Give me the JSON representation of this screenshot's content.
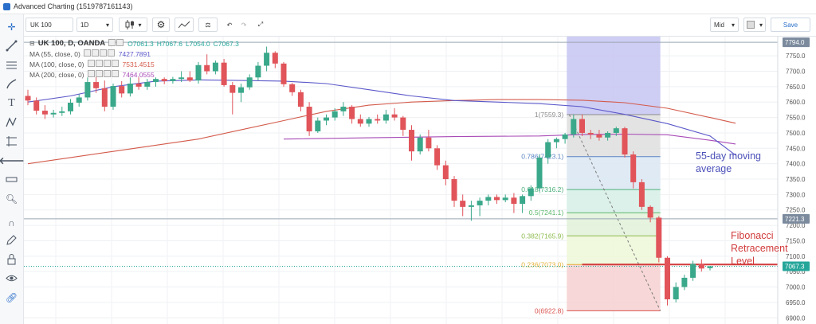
{
  "window": {
    "title": "Advanced Charting (1519787161143)"
  },
  "toolbar": {
    "symbol": "UK 100",
    "interval": "1D",
    "layout": "Mid",
    "save_label": "Save"
  },
  "legend": {
    "symbol_line": "UK 100, D, OANDA",
    "open": "O7061.3",
    "high": "H7067.6",
    "low": "L7054.0",
    "close": "C7067.3",
    "ma55": {
      "label": "MA (55, close, 0)",
      "value": "7427.7891",
      "color": "#5b58c9"
    },
    "ma100": {
      "label": "MA (100, close, 0)",
      "value": "7531.4515",
      "color": "#d35a4a"
    },
    "ma200": {
      "label": "MA (200, close, 0)",
      "value": "7464.0555",
      "color": "#a84bb7"
    }
  },
  "annotations": {
    "ma55_note": [
      "55-day moving",
      "average"
    ],
    "fib_note": [
      "Fibonacci",
      "Retracement",
      "Level"
    ]
  },
  "chart_data": {
    "type": "candlestick",
    "ylim": [
      6900,
      7800
    ],
    "y_ticks": [
      "7750.0",
      "7700.0",
      "7650.0",
      "7600.0",
      "7550.0",
      "7500.0",
      "7450.0",
      "7400.0",
      "7350.0",
      "7300.0",
      "7250.0",
      "7200.0",
      "7150.0",
      "7100.0",
      "7050.0",
      "7000.0",
      "6950.0",
      "6900.0"
    ],
    "y_tick_values": [
      7750,
      7700,
      7650,
      7600,
      7550,
      7500,
      7450,
      7400,
      7350,
      7300,
      7250,
      7200,
      7150,
      7100,
      7050,
      7000,
      6950,
      6900
    ],
    "price_labels": [
      {
        "text": "7794.0",
        "value": 7794
      },
      {
        "text": "7221.3",
        "value": 7221.3
      },
      {
        "text": "7067.3",
        "value": 7067.3
      }
    ],
    "fib_levels": [
      {
        "label": "1(7559.3)",
        "value": 7559.3
      },
      {
        "label": "0.786(7423.1)",
        "value": 7423.1
      },
      {
        "label": "0.618(7316.2)",
        "value": 7316.2
      },
      {
        "label": "0.5(7241.1)",
        "value": 7241.1
      },
      {
        "label": "0.382(7165.9)",
        "value": 7165.9
      },
      {
        "label": "0.236(7073.0)",
        "value": 7073.0
      },
      {
        "label": "0(6922.8)",
        "value": 6922.8
      }
    ],
    "candles": [
      [
        7620,
        7640,
        7590,
        7605
      ],
      [
        7605,
        7615,
        7560,
        7572
      ],
      [
        7572,
        7590,
        7545,
        7560
      ],
      [
        7560,
        7575,
        7550,
        7565
      ],
      [
        7565,
        7585,
        7555,
        7570
      ],
      [
        7570,
        7610,
        7560,
        7598
      ],
      [
        7598,
        7625,
        7585,
        7615
      ],
      [
        7615,
        7680,
        7605,
        7665
      ],
      [
        7665,
        7690,
        7630,
        7645
      ],
      [
        7645,
        7670,
        7570,
        7585
      ],
      [
        7585,
        7660,
        7575,
        7652
      ],
      [
        7652,
        7668,
        7615,
        7628
      ],
      [
        7628,
        7680,
        7618,
        7660
      ],
      [
        7660,
        7680,
        7640,
        7650
      ],
      [
        7650,
        7675,
        7640,
        7665
      ],
      [
        7665,
        7680,
        7650,
        7675
      ],
      [
        7675,
        7680,
        7658,
        7668
      ],
      [
        7668,
        7682,
        7660,
        7675
      ],
      [
        7675,
        7700,
        7665,
        7680
      ],
      [
        7680,
        7700,
        7665,
        7670
      ],
      [
        7670,
        7730,
        7660,
        7720
      ],
      [
        7720,
        7755,
        7690,
        7700
      ],
      [
        7700,
        7735,
        7690,
        7728
      ],
      [
        7728,
        7740,
        7650,
        7655
      ],
      [
        7655,
        7665,
        7560,
        7630
      ],
      [
        7630,
        7660,
        7600,
        7648
      ],
      [
        7648,
        7690,
        7640,
        7680
      ],
      [
        7680,
        7730,
        7670,
        7718
      ],
      [
        7718,
        7780,
        7700,
        7760
      ],
      [
        7760,
        7765,
        7710,
        7725
      ],
      [
        7725,
        7730,
        7650,
        7658
      ],
      [
        7658,
        7662,
        7620,
        7632
      ],
      [
        7632,
        7640,
        7570,
        7585
      ],
      [
        7585,
        7600,
        7490,
        7505
      ],
      [
        7505,
        7550,
        7500,
        7540
      ],
      [
        7540,
        7560,
        7525,
        7550
      ],
      [
        7550,
        7580,
        7540,
        7570
      ],
      [
        7570,
        7600,
        7555,
        7585
      ],
      [
        7585,
        7590,
        7530,
        7545
      ],
      [
        7545,
        7560,
        7520,
        7530
      ],
      [
        7530,
        7552,
        7520,
        7545
      ],
      [
        7545,
        7560,
        7530,
        7540
      ],
      [
        7540,
        7575,
        7530,
        7560
      ],
      [
        7560,
        7580,
        7540,
        7550
      ],
      [
        7550,
        7555,
        7490,
        7510
      ],
      [
        7510,
        7525,
        7410,
        7440
      ],
      [
        7440,
        7495,
        7430,
        7485
      ],
      [
        7485,
        7510,
        7440,
        7450
      ],
      [
        7450,
        7460,
        7380,
        7395
      ],
      [
        7395,
        7410,
        7330,
        7350
      ],
      [
        7350,
        7360,
        7260,
        7280
      ],
      [
        7280,
        7300,
        7230,
        7260
      ],
      [
        7260,
        7280,
        7215,
        7265
      ],
      [
        7265,
        7290,
        7230,
        7280
      ],
      [
        7280,
        7300,
        7265,
        7292
      ],
      [
        7292,
        7300,
        7270,
        7282
      ],
      [
        7282,
        7300,
        7275,
        7290
      ],
      [
        7290,
        7305,
        7240,
        7270
      ],
      [
        7270,
        7300,
        7240,
        7295
      ],
      [
        7295,
        7330,
        7280,
        7320
      ],
      [
        7320,
        7430,
        7310,
        7420
      ],
      [
        7420,
        7480,
        7400,
        7470
      ],
      [
        7470,
        7485,
        7450,
        7480
      ],
      [
        7480,
        7500,
        7465,
        7495
      ],
      [
        7495,
        7560,
        7485,
        7545
      ],
      [
        7545,
        7560,
        7490,
        7500
      ],
      [
        7500,
        7510,
        7480,
        7495
      ],
      [
        7495,
        7510,
        7475,
        7485
      ],
      [
        7485,
        7505,
        7475,
        7500
      ],
      [
        7500,
        7520,
        7490,
        7515
      ],
      [
        7515,
        7520,
        7420,
        7430
      ],
      [
        7430,
        7440,
        7320,
        7340
      ],
      [
        7340,
        7350,
        7250,
        7260
      ],
      [
        7260,
        7265,
        7210,
        7225
      ],
      [
        7225,
        7230,
        7080,
        7095
      ],
      [
        7095,
        7100,
        6940,
        6960
      ],
      [
        6960,
        7015,
        6950,
        7000
      ],
      [
        7000,
        7040,
        6990,
        7030
      ],
      [
        7030,
        7085,
        7020,
        7075
      ],
      [
        7075,
        7090,
        7050,
        7060
      ],
      [
        7061.3,
        7067.6,
        7054,
        7067.3
      ]
    ],
    "ma55": [
      [
        0,
        7600
      ],
      [
        5,
        7620
      ],
      [
        10,
        7650
      ],
      [
        15,
        7668
      ],
      [
        20,
        7672
      ],
      [
        25,
        7670
      ],
      [
        30,
        7668
      ],
      [
        35,
        7660
      ],
      [
        40,
        7640
      ],
      [
        45,
        7620
      ],
      [
        50,
        7605
      ],
      [
        55,
        7600
      ],
      [
        60,
        7595
      ],
      [
        65,
        7585
      ],
      [
        70,
        7560
      ],
      [
        75,
        7530
      ],
      [
        80,
        7490
      ],
      [
        83,
        7427.79
      ]
    ],
    "ma100": [
      [
        0,
        7400
      ],
      [
        5,
        7420
      ],
      [
        10,
        7440
      ],
      [
        15,
        7460
      ],
      [
        20,
        7480
      ],
      [
        25,
        7510
      ],
      [
        30,
        7540
      ],
      [
        35,
        7570
      ],
      [
        40,
        7590
      ],
      [
        45,
        7600
      ],
      [
        50,
        7605
      ],
      [
        55,
        7608
      ],
      [
        60,
        7608
      ],
      [
        65,
        7606
      ],
      [
        70,
        7598
      ],
      [
        75,
        7580
      ],
      [
        80,
        7550
      ],
      [
        83,
        7531.45
      ]
    ],
    "ma200": [
      [
        30,
        7480
      ],
      [
        40,
        7484
      ],
      [
        50,
        7488
      ],
      [
        60,
        7490
      ],
      [
        65,
        7495
      ],
      [
        70,
        7496
      ],
      [
        75,
        7494
      ],
      [
        80,
        7476
      ],
      [
        83,
        7464.06
      ]
    ]
  }
}
